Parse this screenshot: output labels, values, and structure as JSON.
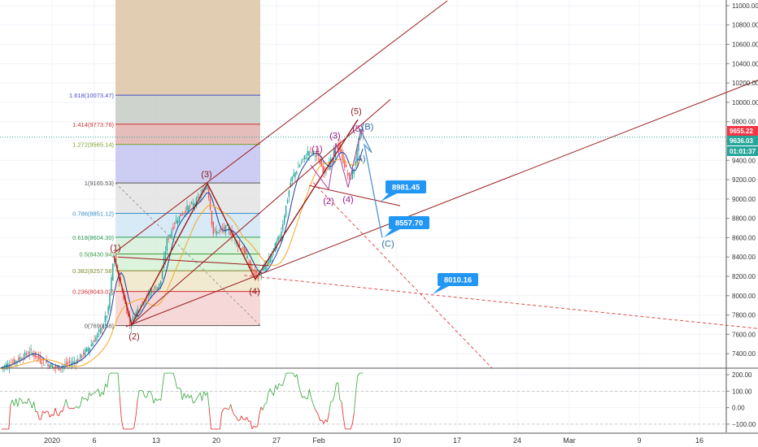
{
  "chart_data": {
    "type": "line",
    "title": "",
    "x_ticks": [
      "2020",
      "6",
      "13",
      "20",
      "27",
      "Feb",
      "10",
      "17",
      "24",
      "Mar",
      "9",
      "16"
    ],
    "price_axis": {
      "ticks": [
        "11000.00",
        "10800.00",
        "10600.00",
        "10400.00",
        "10200.00",
        "10000.00",
        "9800.00",
        "9600.00",
        "9400.00",
        "9200.00",
        "9000.00",
        "8800.00",
        "8600.00",
        "8400.00",
        "8200.00",
        "8000.00",
        "7800.00",
        "7600.00",
        "7400.00"
      ],
      "ylim": [
        7250,
        11050
      ]
    },
    "price_tags": [
      {
        "text": "9655.22",
        "value": 9655.22,
        "color": "#f23645"
      },
      {
        "text": "9636.03",
        "value": 9636.03,
        "color": "#26a69a"
      },
      {
        "text": "01:01:37",
        "value": 9520,
        "color": "#26a69a"
      }
    ],
    "fib_levels": [
      {
        "label": "1.618(10073.47)",
        "value": 10073.47,
        "color": "#4b4bc8"
      },
      {
        "label": "1.414(9773.76)",
        "value": 9773.76,
        "color": "#d32f2f"
      },
      {
        "label": "1.272(9565.14)",
        "value": 9565.14,
        "color": "#7ca32b"
      },
      {
        "label": "1(9165.53)",
        "value": 9165.53,
        "color": "#555555"
      },
      {
        "label": "0.786(8851.12)",
        "value": 8851.12,
        "color": "#3a8fc9"
      },
      {
        "label": "0.618(8604.30)",
        "value": 8604.3,
        "color": "#2e9e58"
      },
      {
        "label": "0.5(8430.94)",
        "value": 8430.94,
        "color": "#3c9b3c"
      },
      {
        "label": "0.382(8257.58)",
        "value": 8257.58,
        "color": "#7c8b2a"
      },
      {
        "label": "0.236(8043.02)",
        "value": 8043.02,
        "color": "#d32f2f"
      },
      {
        "label": "0(7690.58)",
        "value": 7690.58,
        "color": "#555555"
      }
    ],
    "wave_labels": [
      {
        "text": "(1)",
        "color": "#8b1a1a"
      },
      {
        "text": "(2)",
        "color": "#8b1a1a"
      },
      {
        "text": "(3)",
        "color": "#8b1a1a"
      },
      {
        "text": "(4)",
        "color": "#8b1a1a"
      },
      {
        "text": "(5)",
        "color": "#8b1a1a"
      },
      {
        "text": "(1)",
        "color": "#9c1a8c"
      },
      {
        "text": "(2)",
        "color": "#9c1a8c"
      },
      {
        "text": "(3)",
        "color": "#9c1a8c"
      },
      {
        "text": "(4)",
        "color": "#9c1a8c"
      },
      {
        "text": "(5)",
        "color": "#9c1a8c"
      },
      {
        "text": "(B)",
        "color": "#2d6aa3"
      },
      {
        "text": "A)",
        "color": "#2d6aa3"
      },
      {
        "text": "(C)",
        "color": "#2d6aa3"
      }
    ],
    "target_callouts": [
      {
        "text": "8981.45",
        "value": 8981.45
      },
      {
        "text": "8557.70",
        "value": 8557.7
      },
      {
        "text": "8010.16",
        "value": 8010.16
      }
    ],
    "oscillator": {
      "ticks": [
        "200.00",
        "100.00",
        "0.00",
        "−100.00"
      ],
      "ylim": [
        -150,
        230
      ]
    },
    "colors": {
      "up": "#26a69a",
      "down": "#ef5350",
      "trendline": "#9b1c1c",
      "projection": "#5b9bd5",
      "callout": "#2196f3"
    }
  }
}
